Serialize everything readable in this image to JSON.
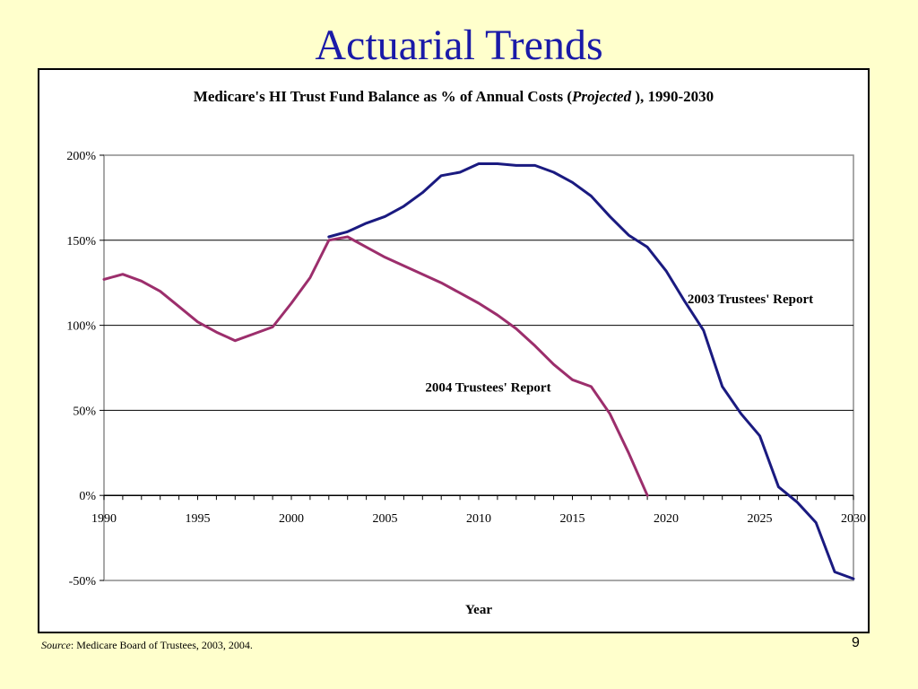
{
  "slide": {
    "title": "Actuarial Trends",
    "source_label": "Source",
    "source_text": ": Medicare Board of Trustees, 2003, 2004.",
    "page_number": "9"
  },
  "chart_data": {
    "type": "line",
    "title_part1": "Medicare's HI Trust Fund Balance as %  of Annual Costs (",
    "title_italic": "Projected",
    "title_part2": " ), 1990-2030",
    "xlabel": "Year",
    "ylabel": "",
    "xlim": [
      1990,
      2030
    ],
    "ylim": [
      -50,
      200
    ],
    "x_ticks": [
      1990,
      1995,
      2000,
      2005,
      2010,
      2015,
      2020,
      2025,
      2030
    ],
    "x_tick_labels": [
      "1990",
      "1995",
      "2000",
      "2005",
      "2010",
      "2015",
      "2020",
      "2025",
      "2030"
    ],
    "y_ticks": [
      -50,
      0,
      50,
      100,
      150,
      200
    ],
    "y_tick_labels": [
      "-50%",
      "0%",
      "50%",
      "100%",
      "150%",
      "200%"
    ],
    "grid": "horizontal",
    "series": [
      {
        "name": "2003 Trustees' Report",
        "color": "#1a1a80",
        "x": [
          2002,
          2003,
          2004,
          2005,
          2006,
          2007,
          2008,
          2009,
          2010,
          2011,
          2012,
          2013,
          2014,
          2015,
          2016,
          2017,
          2018,
          2019,
          2020,
          2021,
          2022,
          2023,
          2024,
          2025,
          2026,
          2027,
          2028,
          2029,
          2030
        ],
        "values": [
          152,
          155,
          160,
          164,
          170,
          178,
          188,
          190,
          195,
          195,
          194,
          194,
          190,
          184,
          176,
          164,
          153,
          146,
          132,
          114,
          97,
          64,
          48,
          35,
          5,
          -4,
          -16,
          -45,
          -49
        ]
      },
      {
        "name": "2004 Trustees' Report",
        "color": "#9c2e6c",
        "x": [
          1990,
          1991,
          1992,
          1993,
          1994,
          1995,
          1996,
          1997,
          1998,
          1999,
          2000,
          2001,
          2002,
          2003,
          2004,
          2005,
          2006,
          2007,
          2008,
          2009,
          2010,
          2011,
          2012,
          2013,
          2014,
          2015,
          2016,
          2017,
          2018,
          2019
        ],
        "values": [
          127,
          130,
          126,
          120,
          111,
          102,
          96,
          91,
          95,
          99,
          113,
          128,
          150,
          152,
          146,
          140,
          135,
          130,
          125,
          119,
          113,
          106,
          98,
          88,
          77,
          68,
          64,
          48,
          25,
          0
        ]
      }
    ],
    "annotations": [
      {
        "text": "2003 Trustees' Report",
        "x": 2024.5,
        "y": 113
      },
      {
        "text": "2004 Trustees' Report",
        "x": 2010.5,
        "y": 61
      }
    ]
  }
}
